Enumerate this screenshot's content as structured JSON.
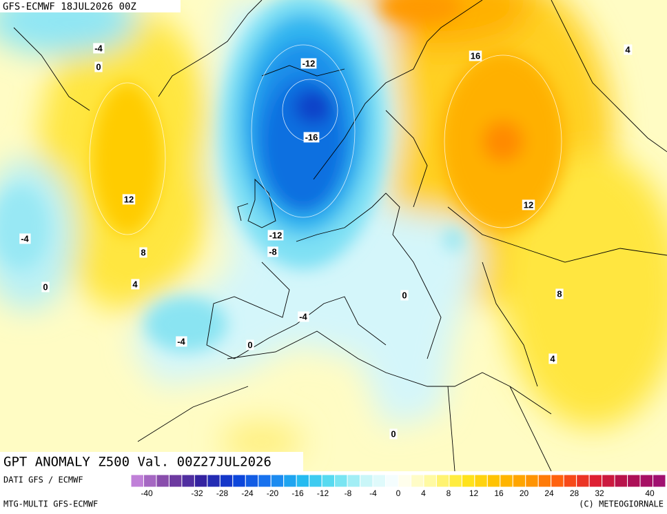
{
  "header": {
    "model_run": "GFS-ECMWF 18JUL2026 00Z"
  },
  "map": {
    "contour_labels": [
      -4,
      0,
      -12,
      16,
      4,
      -16,
      12,
      12,
      -4,
      -12,
      8,
      -8,
      0,
      4,
      0,
      8,
      -4,
      -4,
      0,
      4,
      0
    ]
  },
  "footer": {
    "title": "GPT ANOMALY Z500 Val. 00Z27JUL2026",
    "source": "DATI GFS / ECMWF",
    "product": "MTG-MULTI GFS-ECMWF",
    "copyright": "(C) METEOGIORNALE"
  },
  "colorbar": {
    "ticks": [
      -40,
      -32,
      -28,
      -24,
      -20,
      -16,
      -12,
      -8,
      -4,
      0,
      4,
      8,
      12,
      16,
      20,
      24,
      28,
      32,
      40
    ],
    "stops": [
      "#c080d8",
      "#7a3fa0",
      "#3020a0",
      "#0a3fd8",
      "#1a78f0",
      "#20b8f0",
      "#60e0f0",
      "#c8f6f8",
      "#ffffff",
      "#fffaa0",
      "#ffe820",
      "#ffc000",
      "#ff9a00",
      "#ff5a10",
      "#e02030",
      "#b01050",
      "#a01070"
    ]
  }
}
